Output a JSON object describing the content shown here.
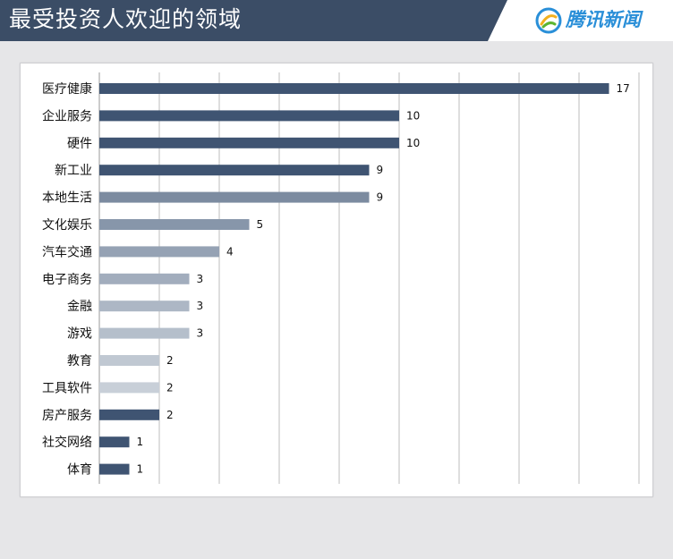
{
  "header": {
    "title": "最受投资人欢迎的领域",
    "brand": "腾讯新闻",
    "brand_logo_icon": "tencent-news-logo-icon",
    "colors": {
      "background": "#3b4d66",
      "brand": "#2a8fd8"
    }
  },
  "chart_data": {
    "type": "bar",
    "orientation": "horizontal",
    "categories": [
      "医疗健康",
      "企业服务",
      "硬件",
      "新工业",
      "本地生活",
      "文化娱乐",
      "汽车交通",
      "电子商务",
      "金融",
      "游戏",
      "教育",
      "工具软件",
      "房产服务",
      "社交网络",
      "体育"
    ],
    "values": [
      17,
      10,
      10,
      9,
      9,
      5,
      4,
      3,
      3,
      3,
      2,
      2,
      2,
      1,
      1
    ],
    "colors": [
      "#3f5472",
      "#3f5472",
      "#3f5472",
      "#3f5472",
      "#7c8ba0",
      "#8796aa",
      "#95a2b4",
      "#a2adbd",
      "#adb7c5",
      "#b5bfcb",
      "#c0c8d2",
      "#c8cfd8",
      "#3f5472",
      "#3f5472",
      "#3f5472"
    ],
    "xlim": [
      0,
      18
    ],
    "grid": true,
    "data_labels": true
  }
}
